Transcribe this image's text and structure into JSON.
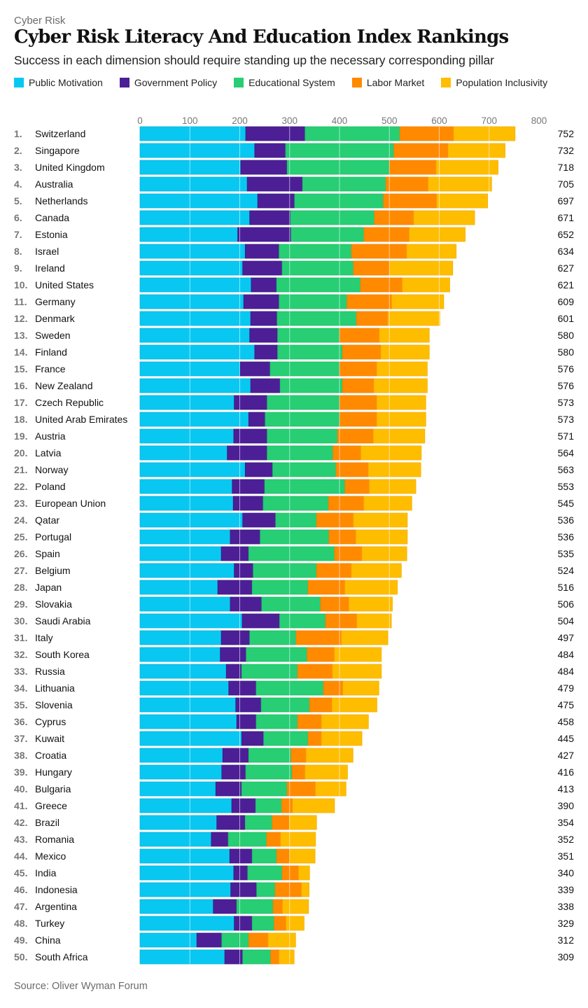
{
  "header": {
    "kicker": "Cyber Risk",
    "title": "Cyber Risk Literacy And Education Index Rankings",
    "subtitle": "Success in each dimension should require standing up the necessary corresponding pillar"
  },
  "footer": {
    "source": "Source: Oliver Wyman Forum"
  },
  "chart_data": {
    "type": "bar",
    "orientation": "horizontal",
    "stacked": true,
    "title": "Cyber Risk Literacy And Education Index Rankings",
    "subtitle": "Success in each dimension should require standing up the necessary corresponding pillar",
    "xlabel": "",
    "ylabel": "",
    "xlim": [
      0,
      800
    ],
    "xticks": [
      0,
      100,
      200,
      300,
      400,
      500,
      600,
      700,
      800
    ],
    "grid": true,
    "legend_position": "top-left",
    "series_names": [
      "Public Motivation",
      "Government Policy",
      "Educational System",
      "Labor Market",
      "Population Inclusivity"
    ],
    "colors": [
      "#08C8F2",
      "#4D1F97",
      "#27CE74",
      "#FF8A00",
      "#FFBD00"
    ],
    "categories": [
      "Switzerland",
      "Singapore",
      "United Kingdom",
      "Australia",
      "Netherlands",
      "Canada",
      "Estonia",
      "Israel",
      "Ireland",
      "United States",
      "Germany",
      "Denmark",
      "Sweden",
      "Finland",
      "France",
      "New Zealand",
      "Czech Republic",
      "United Arab Emirates",
      "Austria",
      "Latvia",
      "Norway",
      "Poland",
      "European Union",
      "Qatar",
      "Portugal",
      "Spain",
      "Belgium",
      "Japan",
      "Slovakia",
      "Saudi Arabia",
      "Italy",
      "South Korea",
      "Russia",
      "Lithuania",
      "Slovenia",
      "Cyprus",
      "Kuwait",
      "Croatia",
      "Hungary",
      "Bulgaria",
      "Greece",
      "Brazil",
      "Romania",
      "Mexico",
      "India",
      "Indonesia",
      "Argentina",
      "Turkey",
      "China",
      "South Africa"
    ],
    "ranks": [
      "1.",
      "2.",
      "3.",
      "4.",
      "5.",
      "6.",
      "7.",
      "8.",
      "9.",
      "10.",
      "11.",
      "12.",
      "13.",
      "14.",
      "15.",
      "16.",
      "17.",
      "18.",
      "19.",
      "20.",
      "21.",
      "22.",
      "23.",
      "24.",
      "25.",
      "26.",
      "27.",
      "28.",
      "29.",
      "30.",
      "31.",
      "32.",
      "33.",
      "34.",
      "35.",
      "36.",
      "37.",
      "38.",
      "39.",
      "40.",
      "41.",
      "42.",
      "43.",
      "44.",
      "45.",
      "46.",
      "47.",
      "48.",
      "49.",
      "50."
    ],
    "totals": [
      752,
      732,
      718,
      705,
      697,
      671,
      652,
      634,
      627,
      621,
      609,
      601,
      580,
      580,
      576,
      576,
      573,
      573,
      571,
      564,
      563,
      553,
      545,
      536,
      536,
      535,
      524,
      516,
      506,
      504,
      497,
      484,
      484,
      479,
      475,
      458,
      445,
      427,
      416,
      413,
      390,
      354,
      352,
      351,
      340,
      339,
      338,
      329,
      312,
      309
    ],
    "series": [
      {
        "name": "Public Motivation",
        "values": [
          212,
          230,
          202,
          215,
          236,
          220,
          196,
          211,
          206,
          223,
          208,
          222,
          220,
          230,
          201,
          222,
          189,
          218,
          188,
          175,
          211,
          185,
          187,
          206,
          181,
          163,
          189,
          156,
          181,
          205,
          163,
          161,
          173,
          178,
          192,
          194,
          204,
          166,
          164,
          152,
          184,
          154,
          143,
          180,
          188,
          182,
          147,
          189,
          114,
          170
        ]
      },
      {
        "name": "Government Policy",
        "values": [
          119,
          62,
          93,
          111,
          74,
          82,
          107,
          68,
          79,
          51,
          71,
          53,
          56,
          46,
          60,
          59,
          66,
          33,
          67,
          80,
          55,
          65,
          60,
          66,
          60,
          55,
          38,
          69,
          63,
          75,
          57,
          52,
          31,
          55,
          51,
          39,
          44,
          52,
          48,
          52,
          48,
          57,
          34,
          45,
          28,
          52,
          47,
          36,
          50,
          36
        ]
      },
      {
        "name": "Educational System",
        "values": [
          190,
          217,
          205,
          167,
          178,
          168,
          146,
          145,
          143,
          168,
          136,
          159,
          124,
          130,
          139,
          125,
          145,
          149,
          141,
          132,
          127,
          161,
          131,
          82,
          138,
          172,
          127,
          112,
          118,
          92,
          93,
          122,
          112,
          135,
          97,
          83,
          89,
          85,
          93,
          91,
          52,
          54,
          77,
          49,
          69,
          37,
          73,
          44,
          54,
          56
        ]
      },
      {
        "name": "Labor Market",
        "values": [
          108,
          109,
          94,
          85,
          107,
          79,
          91,
          111,
          72,
          84,
          90,
          63,
          80,
          77,
          75,
          63,
          75,
          75,
          72,
          56,
          65,
          49,
          71,
          74,
          54,
          55,
          70,
          74,
          57,
          63,
          91,
          55,
          70,
          39,
          45,
          48,
          27,
          30,
          26,
          57,
          22,
          34,
          28,
          26,
          33,
          53,
          19,
          24,
          39,
          17
        ]
      },
      {
        "name": "Population Inclusivity",
        "values": [
          123,
          114,
          124,
          127,
          102,
          122,
          112,
          99,
          127,
          95,
          104,
          104,
          100,
          97,
          101,
          107,
          98,
          98,
          103,
          121,
          105,
          93,
          96,
          108,
          103,
          90,
          100,
          105,
          87,
          69,
          93,
          94,
          98,
          72,
          90,
          94,
          81,
          94,
          85,
          61,
          84,
          55,
          70,
          51,
          22,
          15,
          52,
          36,
          55,
          30
        ]
      }
    ]
  }
}
